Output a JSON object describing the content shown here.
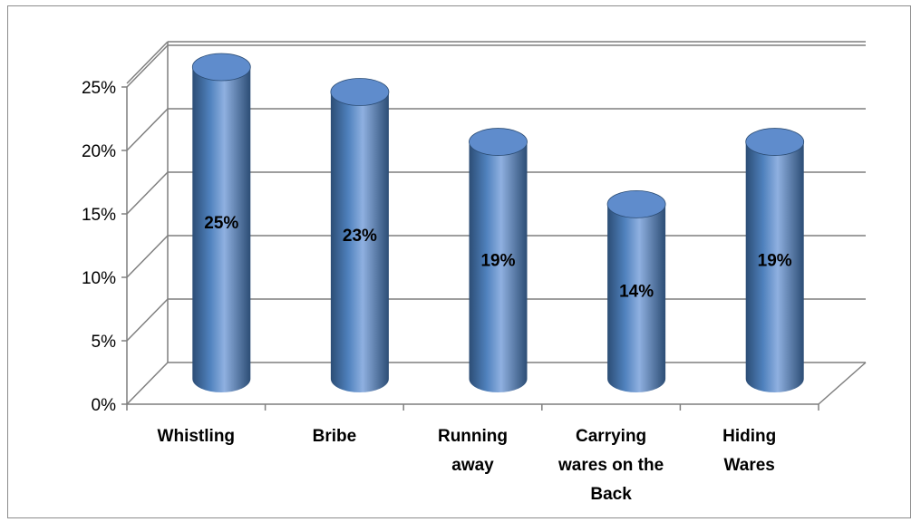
{
  "chart_data": {
    "type": "bar",
    "style": "3d-cylinder",
    "categories": [
      [
        "Whistling"
      ],
      [
        "Bribe"
      ],
      [
        "Running",
        "away"
      ],
      [
        "Carrying",
        "wares on the",
        "Back"
      ],
      [
        "Hiding",
        "Wares"
      ]
    ],
    "values": [
      25,
      23,
      19,
      14,
      19
    ],
    "data_labels": [
      "25%",
      "23%",
      "19%",
      "14%",
      "19%"
    ],
    "yticks": [
      "0%",
      "5%",
      "10%",
      "15%",
      "20%",
      "25%"
    ],
    "ylim": [
      0,
      25
    ],
    "grid": true,
    "legend": "none",
    "colors": {
      "bar_light": "#8fb0e0",
      "bar_mid": "#4f81bd",
      "bar_dark": "#2c4d75",
      "top_cap": "#5f8ccc",
      "grid": "#7f7f7f"
    }
  }
}
